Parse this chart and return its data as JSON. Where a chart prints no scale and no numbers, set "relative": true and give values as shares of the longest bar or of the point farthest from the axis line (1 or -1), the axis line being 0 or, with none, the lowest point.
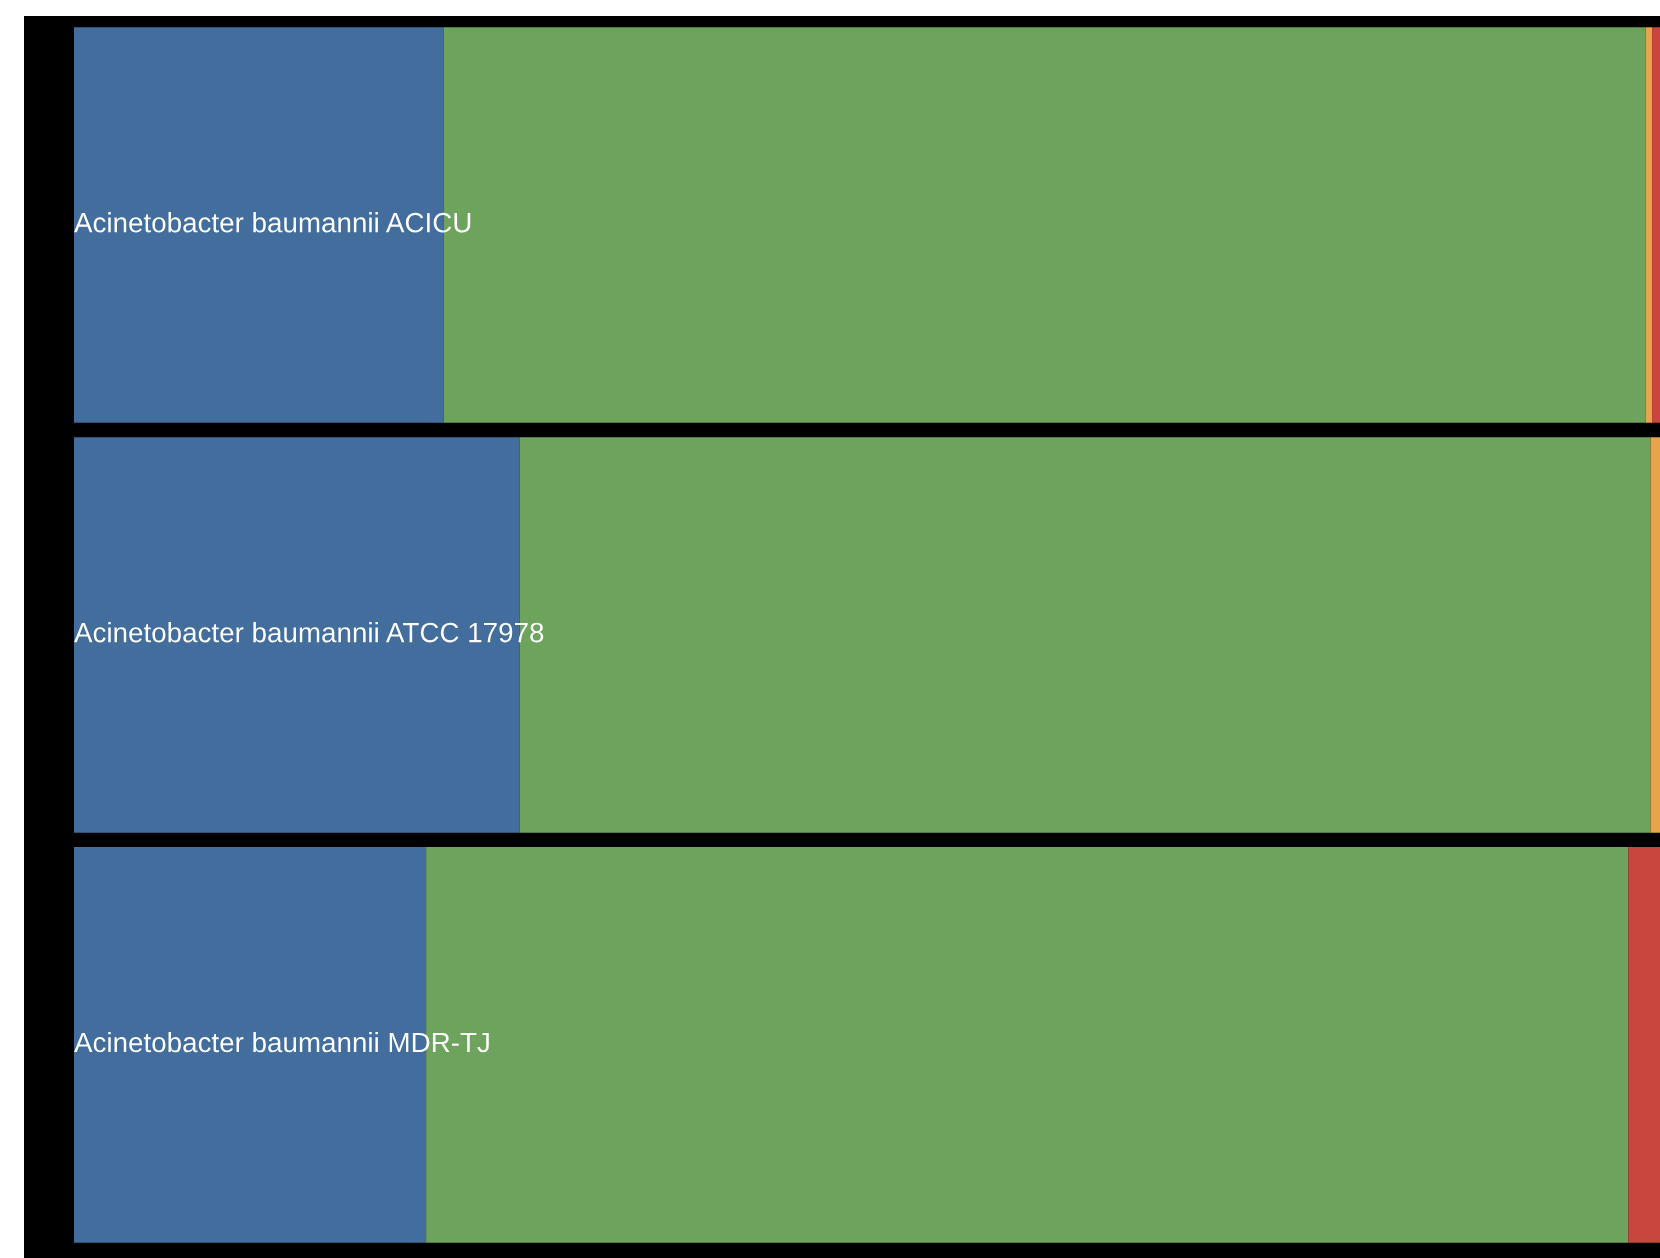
{
  "chart_data": {
    "type": "bar",
    "orientation": "horizontal",
    "stacked": true,
    "relative": true,
    "categories": [
      "Acinetobacter baumannii ACICU",
      "Acinetobacter baumannii ATCC 17978",
      "Acinetobacter baumannii MDR-TJ"
    ],
    "series": [
      {
        "color": "#426d9c",
        "values": [
          0.233,
          0.281,
          0.222
        ]
      },
      {
        "color": "#6ea35d",
        "values": [
          0.758,
          0.713,
          0.758
        ]
      },
      {
        "color": "#e8a44a",
        "values": [
          0.004,
          0.006,
          0
        ]
      },
      {
        "color": "#c9463f",
        "values": [
          0.005,
          0,
          0.02
        ]
      }
    ]
  }
}
